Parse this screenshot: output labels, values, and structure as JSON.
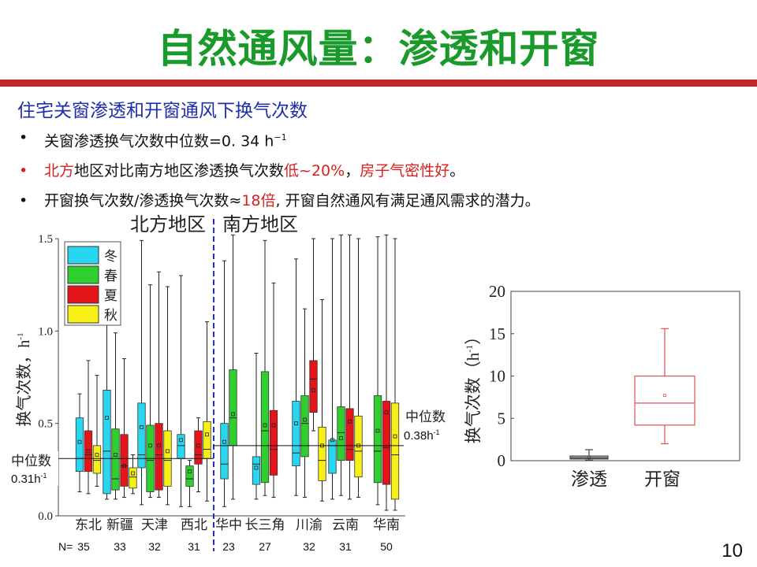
{
  "title": "自然通风量：渗透和开窗",
  "subtitle": "住宅关窗渗透和开窗通风下换气次数",
  "bullets": [
    {
      "dot": "•",
      "pre": "关窗渗透换气次数中位数=0. 34  h",
      "sup": "−1"
    },
    {
      "dot": "•",
      "a": "北方",
      "b": "地区对比南方地区渗透换气次数",
      "c": "低",
      "d": "~20%",
      "e": "，",
      "f": "房子气密性好",
      "g": "。"
    },
    {
      "dot": "•",
      "a": "开窗换气次数/渗透换气次数≈",
      "b": "18倍",
      "c": ", 开窗自然通风有满足通风需求的潜力。"
    }
  ],
  "page_number": "10",
  "colors": {
    "title": "#1a9a2a",
    "rule": "#c2262b",
    "subtitle": "#1f2fa8",
    "highlight": "#d91f1f",
    "winter": "#29d6ef",
    "spring": "#2fcf2f",
    "summer": "#e4141b",
    "autumn": "#f7ef16",
    "divider": "#2a2fb8",
    "opening": "#e05050"
  },
  "chart_data": [
    {
      "type": "box",
      "region_labels": [
        "北方地区",
        "南方地区"
      ],
      "ylabel": "换气次数，h",
      "ylabel_sup": "-1",
      "ylim": [
        0,
        1.5
      ],
      "yticks": [
        "0.0",
        "0.5",
        "1.0",
        "1.5"
      ],
      "ytick_values": [
        0,
        0.5,
        1.0,
        1.5
      ],
      "legend": [
        "冬",
        "春",
        "夏",
        "秋"
      ],
      "legend_position": "top-left",
      "n_prefix": "N=",
      "north_median_label": "中位数",
      "north_median_value": "0.31h",
      "north_median_sup": "-1",
      "north_median": 0.31,
      "south_median_label": "中位数",
      "south_median_value": "0.38h",
      "south_median_sup": "-1",
      "south_median": 0.38,
      "categories": [
        {
          "name": "东北",
          "n": "35",
          "boxes": [
            {
              "s": 0,
              "lo": 0.13,
              "q1": 0.24,
              "med": 0.31,
              "q3": 0.53,
              "hi": 0.66,
              "mean": 0.4
            },
            {
              "s": 2,
              "lo": 0.12,
              "q1": 0.24,
              "med": 0.33,
              "q3": 0.46,
              "hi": 0.84,
              "mean": 0.35
            },
            {
              "s": 3,
              "lo": 0.16,
              "q1": 0.23,
              "med": 0.3,
              "q3": 0.38,
              "hi": 0.76,
              "mean": 0.33
            }
          ]
        },
        {
          "name": "新疆",
          "n": "33",
          "boxes": [
            {
              "s": 0,
              "lo": 0.09,
              "q1": 0.12,
              "med": 0.35,
              "q3": 0.68,
              "hi": 1.29,
              "mean": 0.53
            },
            {
              "s": 1,
              "lo": 0.09,
              "q1": 0.14,
              "med": 0.2,
              "q3": 0.47,
              "hi": 0.99,
              "mean": 0.33
            },
            {
              "s": 2,
              "lo": 0.1,
              "q1": 0.16,
              "med": 0.27,
              "q3": 0.44,
              "hi": 0.85,
              "mean": 0.27
            },
            {
              "s": 3,
              "lo": 0.12,
              "q1": 0.15,
              "med": 0.21,
              "q3": 0.26,
              "hi": 0.33,
              "mean": 0.23
            }
          ]
        },
        {
          "name": "天津",
          "n": "32",
          "boxes": [
            {
              "s": 0,
              "lo": 0.06,
              "q1": 0.26,
              "med": 0.33,
              "q3": 0.61,
              "hi": 1.49,
              "mean": 0.48
            },
            {
              "s": 1,
              "lo": 0.1,
              "q1": 0.13,
              "med": 0.3,
              "q3": 0.49,
              "hi": 1.25,
              "mean": 0.38
            },
            {
              "s": 2,
              "lo": 0.1,
              "q1": 0.14,
              "med": 0.33,
              "q3": 0.5,
              "hi": 1.32,
              "mean": 0.38
            },
            {
              "s": 3,
              "lo": 0.06,
              "q1": 0.16,
              "med": 0.3,
              "q3": 0.46,
              "hi": 1.24,
              "mean": 0.35
            }
          ]
        },
        {
          "name": "西北",
          "n": "31",
          "boxes": [
            {
              "s": 0,
              "lo": 0.05,
              "q1": 0.31,
              "med": 0.38,
              "q3": 0.44,
              "hi": 1.3,
              "mean": 0.41
            },
            {
              "s": 1,
              "lo": 0.05,
              "q1": 0.16,
              "med": 0.2,
              "q3": 0.27,
              "hi": 0.3,
              "mean": 0.24
            },
            {
              "s": 2,
              "lo": 0.13,
              "q1": 0.28,
              "med": 0.33,
              "q3": 0.46,
              "hi": 0.53,
              "mean": 0.38
            },
            {
              "s": 3,
              "lo": 0.08,
              "q1": 0.31,
              "med": 0.36,
              "q3": 0.51,
              "hi": 1.05,
              "mean": 0.44
            }
          ]
        },
        {
          "name": "华中",
          "n": "23",
          "boxes": [
            {
              "s": 0,
              "lo": 0.05,
              "q1": 0.2,
              "med": 0.28,
              "q3": 0.5,
              "hi": 1.38,
              "mean": 0.4
            },
            {
              "s": 1,
              "lo": 0.09,
              "q1": 0.38,
              "med": 0.53,
              "q3": 0.79,
              "hi": 1.52,
              "mean": 0.55
            }
          ]
        },
        {
          "name": "长三角",
          "n": "27",
          "boxes": [
            {
              "s": 0,
              "lo": 0.09,
              "q1": 0.17,
              "med": 0.28,
              "q3": 0.32,
              "hi": 0.88,
              "mean": 0.26
            },
            {
              "s": 1,
              "lo": 0.11,
              "q1": 0.18,
              "med": 0.46,
              "q3": 0.78,
              "hi": 1.49,
              "mean": 0.49
            },
            {
              "s": 2,
              "lo": 0.1,
              "q1": 0.22,
              "med": 0.36,
              "q3": 0.57,
              "hi": 1.26,
              "mean": 0.49
            }
          ]
        },
        {
          "name": "川渝",
          "n": "32",
          "boxes": [
            {
              "s": 0,
              "lo": 0.11,
              "q1": 0.27,
              "med": 0.34,
              "q3": 0.62,
              "hi": 1.39,
              "mean": 0.5
            },
            {
              "s": 1,
              "lo": 0.1,
              "q1": 0.32,
              "med": 0.5,
              "q3": 0.65,
              "hi": 1.12,
              "mean": 0.52
            },
            {
              "s": 2,
              "lo": 0.46,
              "q1": 0.56,
              "med": 0.74,
              "q3": 0.84,
              "hi": 1.5,
              "mean": 0.68
            },
            {
              "s": 3,
              "lo": 0.08,
              "q1": 0.19,
              "med": 0.3,
              "q3": 0.48,
              "hi": 1.17,
              "mean": 0.38
            }
          ]
        },
        {
          "name": "云南",
          "n": "31",
          "boxes": [
            {
              "s": 0,
              "lo": 0.09,
              "q1": 0.23,
              "med": 0.38,
              "q3": 0.41,
              "hi": 1.5,
              "mean": 0.41
            },
            {
              "s": 1,
              "lo": 0.11,
              "q1": 0.3,
              "med": 0.45,
              "q3": 0.59,
              "hi": 1.52,
              "mean": 0.42
            },
            {
              "s": 2,
              "lo": 0.09,
              "q1": 0.3,
              "med": 0.36,
              "q3": 0.58,
              "hi": 1.52,
              "mean": 0.51
            },
            {
              "s": 3,
              "lo": 0.1,
              "q1": 0.21,
              "med": 0.35,
              "q3": 0.54,
              "hi": 1.5,
              "mean": 0.38
            }
          ]
        },
        {
          "name": "华南",
          "n": "50",
          "boxes": [
            {
              "s": 1,
              "lo": 0.06,
              "q1": 0.18,
              "med": 0.35,
              "q3": 0.65,
              "hi": 1.51,
              "mean": 0.46
            },
            {
              "s": 2,
              "lo": 0.03,
              "q1": 0.17,
              "med": 0.37,
              "q3": 0.62,
              "hi": 1.52,
              "mean": 0.56
            },
            {
              "s": 3,
              "lo": 0.03,
              "q1": 0.09,
              "med": 0.33,
              "q3": 0.61,
              "hi": 1.5,
              "mean": 0.43
            }
          ]
        }
      ]
    },
    {
      "type": "box",
      "ylabel": "换气次数（h",
      "ylabel_sup": "-1",
      "ylabel_end": "）",
      "ylim": [
        0,
        20
      ],
      "yticks": [
        "0",
        "5",
        "10",
        "15",
        "20"
      ],
      "ytick_values": [
        0,
        5,
        10,
        15,
        20
      ],
      "categories": [
        {
          "name": "渗透",
          "lo": 0.05,
          "q1": 0.2,
          "med": 0.34,
          "q3": 0.55,
          "hi": 1.3,
          "mean": 0.4
        },
        {
          "name": "开窗",
          "lo": 2.0,
          "q1": 4.2,
          "med": 6.8,
          "q3": 10.0,
          "hi": 15.6,
          "mean": 7.7
        }
      ]
    }
  ]
}
